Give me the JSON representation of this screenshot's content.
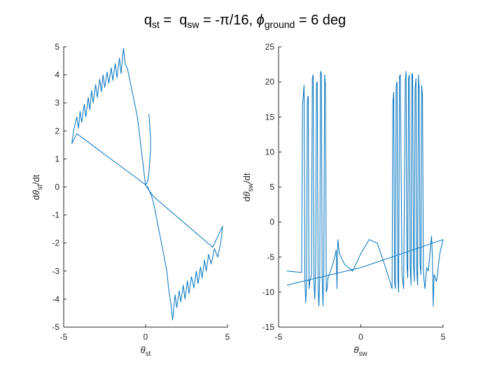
{
  "figure": {
    "title_parts": {
      "q1": "q",
      "q1_sub": "st",
      "mid1": " =  ",
      "q2": "q",
      "q2_sub": "sw",
      "mid2": " = -π/16, ",
      "phi": "ϕ",
      "phi_sub": "ground",
      "end": " = 6 deg"
    }
  },
  "chart_data": [
    {
      "type": "line",
      "xlabel_symbol": "θ",
      "xlabel_sub": "st",
      "ylabel_pre": "d",
      "ylabel_symbol": "θ",
      "ylabel_sub": "st",
      "ylabel_post": "/dt",
      "xlim": [
        -5,
        5
      ],
      "ylim": [
        -5,
        5
      ],
      "xticks": [
        -5,
        0,
        5
      ],
      "yticks": [
        -5,
        -4,
        -3,
        -2,
        -1,
        0,
        1,
        2,
        3,
        4,
        5
      ],
      "grid": false,
      "color": "#0072BD",
      "x": [
        0.2,
        0.25,
        0.3,
        0.3,
        0.25,
        0.2,
        0.15,
        0.1,
        0.0,
        -0.6,
        -1.2,
        -1.8,
        -2.4,
        -3.0,
        -3.6,
        -4.2,
        -4.5,
        -4.4,
        -4.2,
        -4.1,
        -4.0,
        -3.9,
        -3.75,
        -3.65,
        -3.5,
        -3.4,
        -3.3,
        -3.2,
        -3.05,
        -2.95,
        -2.8,
        -2.7,
        -2.6,
        -2.5,
        -2.35,
        -2.25,
        -2.1,
        -2.0,
        -1.85,
        -1.75,
        -1.6,
        -1.5,
        -1.35,
        -1.25,
        -1.1,
        -0.5,
        0.0,
        0.5,
        1.1,
        1.7,
        2.3,
        2.9,
        3.5,
        4.1,
        4.7,
        4.6,
        4.4,
        4.2,
        4.0,
        3.85,
        3.7,
        3.6,
        3.45,
        3.35,
        3.2,
        3.1,
        2.95,
        2.8,
        2.65,
        2.55,
        2.4,
        2.3,
        2.15,
        2.05,
        1.9,
        1.8,
        1.65,
        1.55,
        1.4,
        1.3,
        1.1,
        0.9,
        0.7,
        0.5,
        0.35,
        0.2,
        0.1
      ],
      "y": [
        2.6,
        2.2,
        1.8,
        1.3,
        0.9,
        0.5,
        0.3,
        0.15,
        0.08,
        0.34,
        0.6,
        0.86,
        1.12,
        1.38,
        1.64,
        1.9,
        1.55,
        2.0,
        2.5,
        2.1,
        2.7,
        2.3,
        2.95,
        2.5,
        3.2,
        2.75,
        3.45,
        3.0,
        3.65,
        3.2,
        3.85,
        3.4,
        4.0,
        3.55,
        4.1,
        3.7,
        4.25,
        3.8,
        4.4,
        3.9,
        4.6,
        4.05,
        4.95,
        4.4,
        4.2,
        2.5,
        0.05,
        -0.35,
        -0.65,
        -0.95,
        -1.25,
        -1.55,
        -1.85,
        -2.15,
        -1.4,
        -1.95,
        -2.5,
        -2.2,
        -2.75,
        -2.4,
        -3.0,
        -2.6,
        -3.25,
        -2.85,
        -3.45,
        -3.0,
        -3.6,
        -3.2,
        -3.8,
        -3.35,
        -4.0,
        -3.5,
        -4.1,
        -3.7,
        -4.3,
        -3.85,
        -4.75,
        -4.2,
        -3.6,
        -3.0,
        -2.4,
        -1.8,
        -1.2,
        -0.6,
        -0.3,
        -0.1,
        0.05
      ]
    },
    {
      "type": "line",
      "xlabel_symbol": "θ",
      "xlabel_sub": "sw",
      "ylabel_pre": "d",
      "ylabel_symbol": "θ",
      "ylabel_sub": "sw",
      "ylabel_post": "/dt",
      "xlim": [
        -5,
        5
      ],
      "ylim": [
        -15,
        25
      ],
      "xticks": [
        -5,
        0,
        5
      ],
      "yticks": [
        -15,
        -10,
        -5,
        0,
        5,
        10,
        15,
        20,
        25
      ],
      "grid": false,
      "color": "#0072BD",
      "x": [
        -4.5,
        -3.6,
        -3.55,
        -3.45,
        -3.4,
        -3.35,
        -3.3,
        -3.25,
        -3.2,
        -3.15,
        -3.1,
        -3.0,
        -2.95,
        -2.9,
        -2.85,
        -2.8,
        -2.75,
        -2.7,
        -2.65,
        -2.6,
        -2.55,
        -2.5,
        -2.45,
        -2.4,
        -2.35,
        -2.3,
        -2.25,
        -2.2,
        -2.15,
        -2.1,
        -2.05,
        -2.0,
        -1.7,
        -1.5,
        -1.45,
        -1.4,
        -1.3,
        -1.0,
        -0.5,
        0.0,
        0.5,
        1.0,
        1.5,
        1.9,
        1.95,
        2.0,
        2.05,
        2.1,
        2.15,
        2.2,
        2.25,
        2.3,
        2.35,
        2.4,
        2.5,
        2.6,
        2.7,
        2.75,
        2.8,
        2.85,
        2.9,
        2.95,
        3.0,
        3.05,
        3.1,
        3.15,
        3.2,
        3.25,
        3.3,
        3.35,
        3.4,
        3.45,
        3.5,
        3.55,
        3.6,
        3.65,
        3.7,
        3.75,
        3.8,
        3.85,
        3.9,
        3.95,
        4.0,
        4.1,
        4.3,
        4.35,
        4.4,
        4.45,
        4.6,
        4.8,
        5.0,
        0.0,
        -4.5
      ],
      "y": [
        -7,
        -7.2,
        16.5,
        19.5,
        -8.5,
        -11.5,
        -9,
        17.5,
        18,
        -9.5,
        -8.5,
        -7.5,
        20.5,
        21,
        -8.5,
        -11,
        -7,
        19.8,
        20,
        -9,
        -12,
        -8,
        21.5,
        21.2,
        -8,
        -12,
        -6.5,
        21,
        19.5,
        -10,
        -9.5,
        -8,
        -6,
        -4,
        -9.5,
        -2.5,
        -4.5,
        -6.0,
        -7.0,
        -4.5,
        -2.5,
        -3.0,
        -6.5,
        -9.5,
        17,
        18.5,
        -8.5,
        -9.5,
        19.5,
        20,
        -8,
        -10,
        20.8,
        21,
        -7.5,
        -9.5,
        20,
        21.5,
        -6,
        -8,
        20.5,
        21,
        -6.5,
        -9,
        21.2,
        21,
        -6,
        -8.5,
        19,
        20.5,
        -7,
        -9,
        21,
        19,
        -6,
        -7.5,
        19.5,
        18,
        -7,
        -8.5,
        -9.5,
        -8,
        -6.5,
        -7,
        -2.0,
        -5,
        -12,
        -7.5,
        -8.5,
        -4.5,
        -2.5,
        -6.5,
        -9.0
      ]
    }
  ]
}
